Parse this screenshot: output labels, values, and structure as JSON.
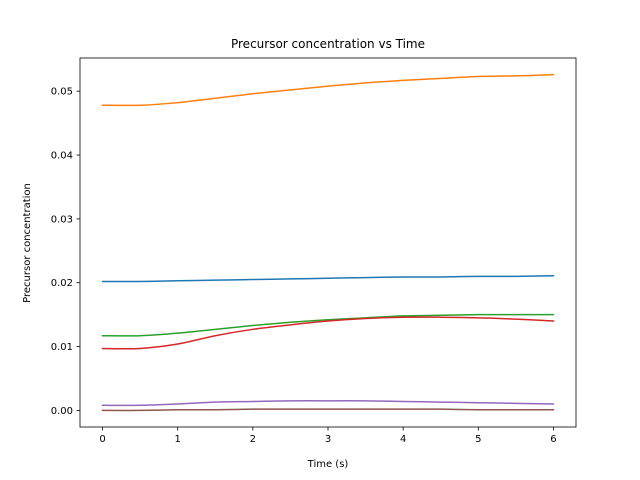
{
  "chart_data": {
    "type": "line",
    "title": "Precursor concentration vs Time",
    "xlabel": "Time (s)",
    "ylabel": "Precursor concentration",
    "xlim": [
      -0.3,
      6.3
    ],
    "ylim": [
      -0.0026,
      0.0552
    ],
    "xticks": [
      0,
      1,
      2,
      3,
      4,
      5,
      6
    ],
    "yticks": [
      0.0,
      0.01,
      0.02,
      0.03,
      0.04,
      0.05
    ],
    "xtick_labels": [
      "0",
      "1",
      "2",
      "3",
      "4",
      "5",
      "6"
    ],
    "ytick_labels": [
      "0.00",
      "0.01",
      "0.02",
      "0.03",
      "0.04",
      "0.05"
    ],
    "grid": false,
    "legend": "none",
    "x": [
      0,
      0.5,
      1,
      1.5,
      2,
      2.5,
      3,
      3.5,
      4,
      4.5,
      5,
      5.5,
      6
    ],
    "series": [
      {
        "color": "#1f77b4",
        "values": [
          0.0202,
          0.0202,
          0.0203,
          0.0204,
          0.0205,
          0.0206,
          0.0207,
          0.0208,
          0.0209,
          0.0209,
          0.021,
          0.021,
          0.0211
        ]
      },
      {
        "color": "#ff7f0e",
        "values": [
          0.0478,
          0.0478,
          0.0482,
          0.0489,
          0.0496,
          0.0502,
          0.0508,
          0.0513,
          0.0517,
          0.052,
          0.0523,
          0.0524,
          0.0526
        ]
      },
      {
        "color": "#2ca02c",
        "values": [
          0.0117,
          0.0117,
          0.0121,
          0.0127,
          0.0133,
          0.0138,
          0.0142,
          0.0145,
          0.0148,
          0.0149,
          0.015,
          0.015,
          0.015
        ]
      },
      {
        "color": "#d62728",
        "values": [
          0.0097,
          0.0097,
          0.0104,
          0.0117,
          0.0127,
          0.0134,
          0.014,
          0.0144,
          0.0146,
          0.0146,
          0.0145,
          0.0143,
          0.014
        ]
      },
      {
        "color": "#9467bd",
        "values": [
          0.0008,
          0.0008,
          0.001,
          0.0013,
          0.0014,
          0.0015,
          0.0015,
          0.0015,
          0.0014,
          0.0013,
          0.0012,
          0.0011,
          0.001
        ]
      },
      {
        "color": "#8c564b",
        "values": [
          0.0,
          0.0,
          0.0001,
          0.0001,
          0.0002,
          0.0002,
          0.0002,
          0.0002,
          0.0002,
          0.0002,
          0.0001,
          0.0001,
          0.0001
        ]
      }
    ]
  }
}
